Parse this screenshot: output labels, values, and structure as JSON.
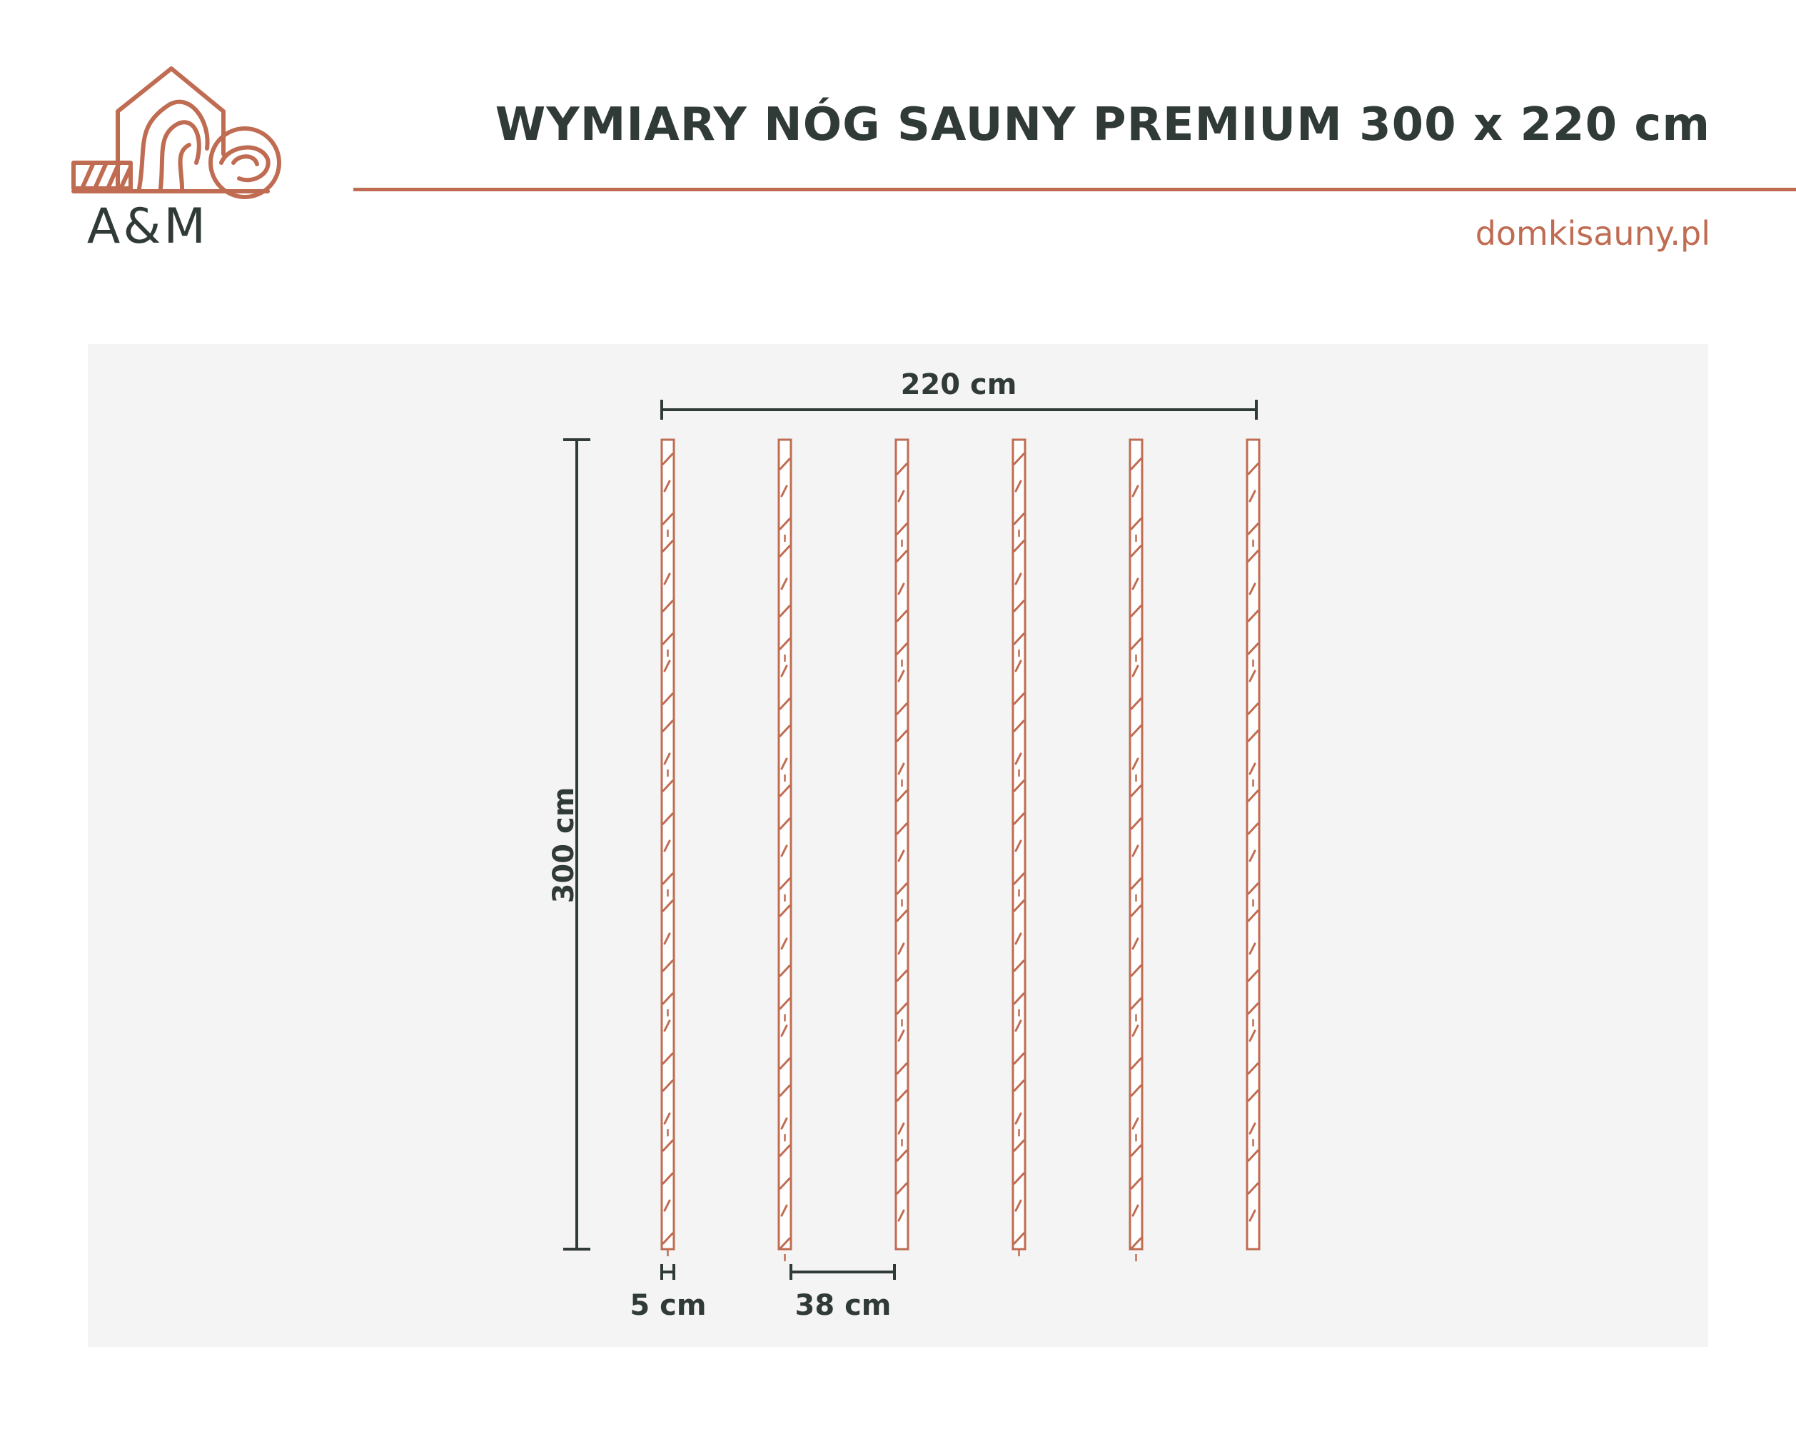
{
  "header": {
    "title": "WYMIARY NÓG SAUNY PREMIUM 300 x 220 cm",
    "website": "domkisauny.pl"
  },
  "logo": {
    "text": "A&M",
    "icon": "sauna-house-wood-logo-icon"
  },
  "diagram": {
    "legs_count": 6,
    "dimensions": {
      "total_width_label": "220 cm",
      "height_label": "300 cm",
      "leg_width_label": "5 cm",
      "spacing_label": "38 cm"
    }
  },
  "colors": {
    "accent": "#c06c52",
    "text_dark": "#303a36",
    "panel_bg": "#f4f4f4"
  }
}
